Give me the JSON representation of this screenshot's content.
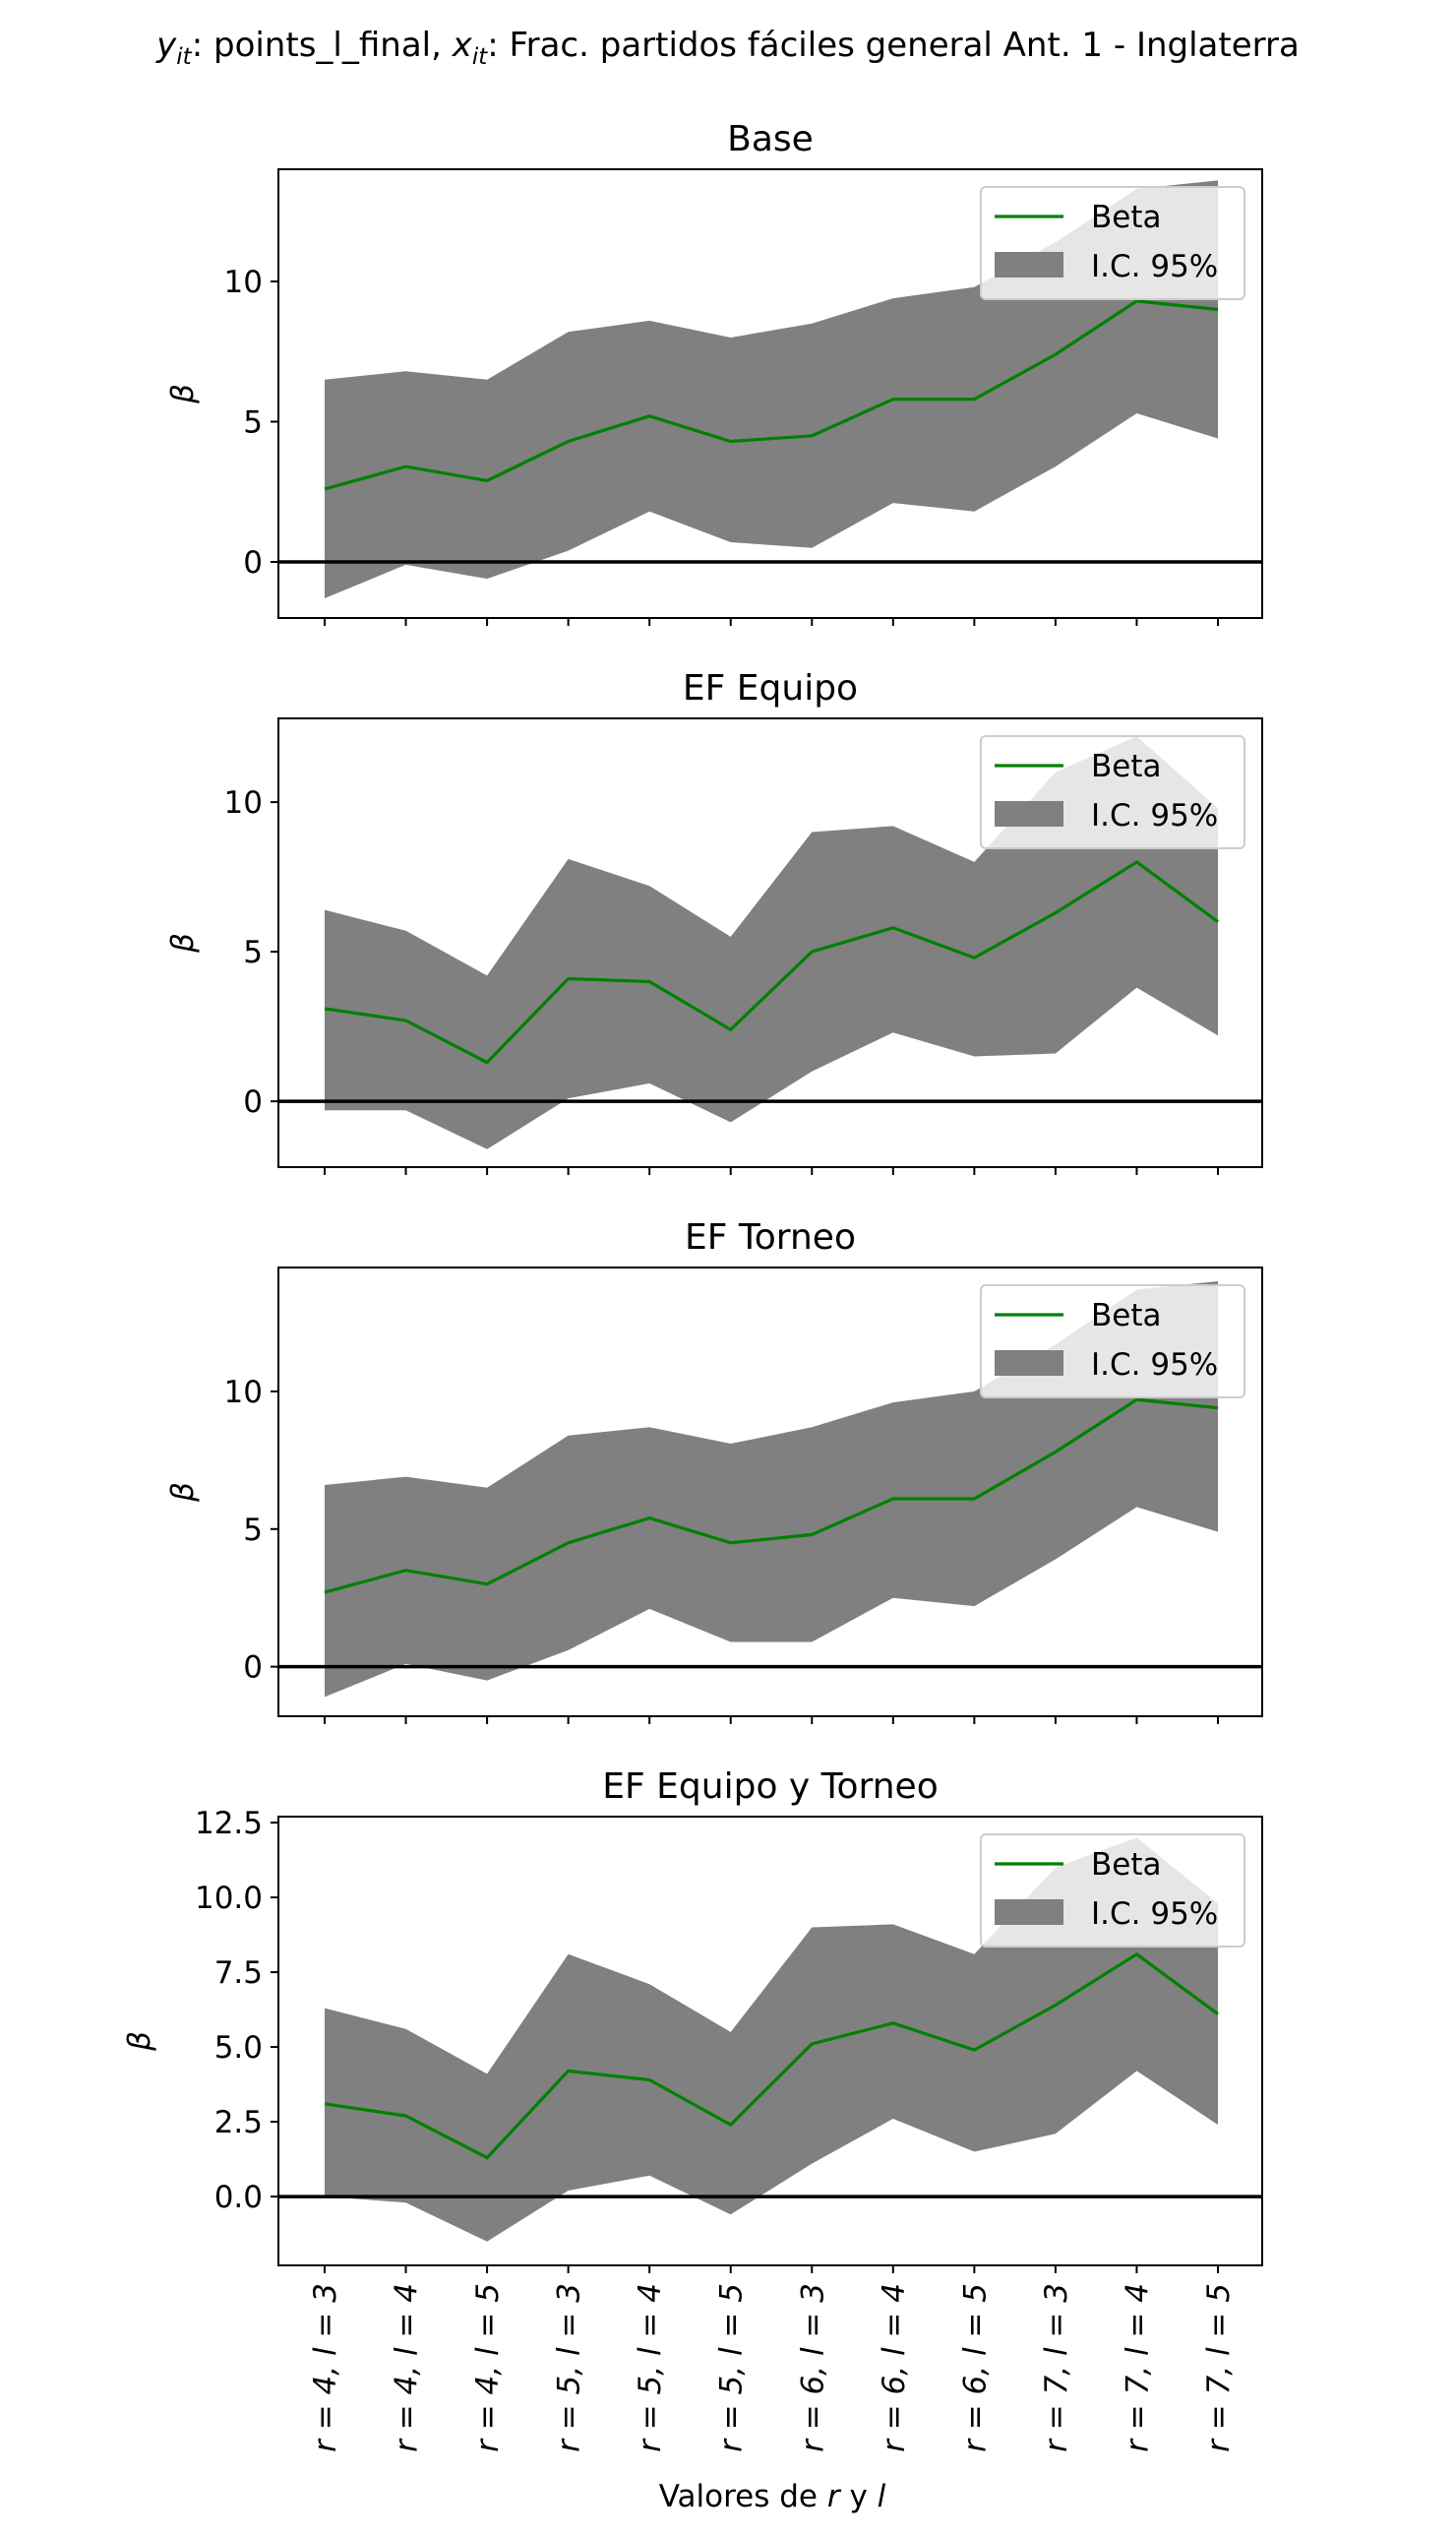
{
  "suptitle": {
    "y_var": "y",
    "y_sub": "it",
    "y_rest": ": points_l_final, ",
    "x_var": "x",
    "x_sub": "it",
    "x_rest": ": Frac. partidos fáciles general Ant. 1 - Inglaterra"
  },
  "xlabel": {
    "prefix": "Valores de ",
    "r": "r",
    "middle": " y ",
    "l": "l"
  },
  "ylabel": "β",
  "legend": {
    "line": "Beta",
    "band": "I.C. 95%"
  },
  "colors": {
    "line": "#008000",
    "band": "#808080",
    "zero": "#000000"
  },
  "x_categories": [
    "r = 4, l = 3",
    "r = 4, l = 4",
    "r = 4, l = 5",
    "r = 5, l = 3",
    "r = 5, l = 4",
    "r = 5, l = 5",
    "r = 6, l = 3",
    "r = 6, l = 4",
    "r = 6, l = 5",
    "r = 7, l = 3",
    "r = 7, l = 4",
    "r = 7, l = 5"
  ],
  "chart_data": [
    {
      "type": "line",
      "title": "Base",
      "ylabel": "β",
      "ylim": [
        -2.0,
        14.0
      ],
      "yticks": [
        0,
        5,
        10
      ],
      "ytick_labels": [
        "0",
        "5",
        "10"
      ],
      "series": [
        {
          "name": "Beta",
          "values": [
            2.6,
            3.4,
            2.9,
            4.3,
            5.2,
            4.3,
            4.5,
            5.8,
            5.8,
            7.4,
            9.3,
            9.0
          ]
        }
      ],
      "ci_lower": [
        -1.3,
        -0.1,
        -0.6,
        0.4,
        1.8,
        0.7,
        0.5,
        2.1,
        1.8,
        3.4,
        5.3,
        4.4
      ],
      "ci_upper": [
        6.5,
        6.8,
        6.5,
        8.2,
        8.6,
        8.0,
        8.5,
        9.4,
        9.8,
        11.4,
        13.3,
        13.6
      ]
    },
    {
      "type": "line",
      "title": "EF Equipo",
      "ylabel": "β",
      "ylim": [
        -2.2,
        12.8
      ],
      "yticks": [
        0,
        5,
        10
      ],
      "ytick_labels": [
        "0",
        "5",
        "10"
      ],
      "series": [
        {
          "name": "Beta",
          "values": [
            3.1,
            2.7,
            1.3,
            4.1,
            4.0,
            2.4,
            5.0,
            5.8,
            4.8,
            6.3,
            8.0,
            6.0
          ]
        }
      ],
      "ci_lower": [
        -0.3,
        -0.3,
        -1.6,
        0.1,
        0.6,
        -0.7,
        1.0,
        2.3,
        1.5,
        1.6,
        3.8,
        2.2
      ],
      "ci_upper": [
        6.4,
        5.7,
        4.2,
        8.1,
        7.2,
        5.5,
        9.0,
        9.2,
        8.0,
        11.0,
        12.2,
        9.8
      ]
    },
    {
      "type": "line",
      "title": "EF Torneo",
      "ylabel": "β",
      "ylim": [
        -1.8,
        14.5
      ],
      "yticks": [
        0,
        5,
        10
      ],
      "ytick_labels": [
        "0",
        "5",
        "10"
      ],
      "series": [
        {
          "name": "Beta",
          "values": [
            2.7,
            3.5,
            3.0,
            4.5,
            5.4,
            4.5,
            4.8,
            6.1,
            6.1,
            7.8,
            9.7,
            9.4
          ]
        }
      ],
      "ci_lower": [
        -1.1,
        0.1,
        -0.5,
        0.6,
        2.1,
        0.9,
        0.9,
        2.5,
        2.2,
        3.9,
        5.8,
        4.9
      ],
      "ci_upper": [
        6.6,
        6.9,
        6.5,
        8.4,
        8.7,
        8.1,
        8.7,
        9.6,
        10.0,
        11.7,
        13.7,
        14.0
      ]
    },
    {
      "type": "line",
      "title": "EF Equipo y Torneo",
      "ylabel": "β",
      "ylim": [
        -2.3,
        12.7
      ],
      "yticks": [
        0.0,
        2.5,
        5.0,
        7.5,
        10.0,
        12.5
      ],
      "ytick_labels": [
        "0.0",
        "2.5",
        "5.0",
        "7.5",
        "10.0",
        "12.5"
      ],
      "series": [
        {
          "name": "Beta",
          "values": [
            3.1,
            2.7,
            1.3,
            4.2,
            3.9,
            2.4,
            5.1,
            5.8,
            4.9,
            6.4,
            8.1,
            6.1
          ]
        }
      ],
      "ci_lower": [
        0.0,
        -0.2,
        -1.5,
        0.2,
        0.7,
        -0.6,
        1.1,
        2.6,
        1.5,
        2.1,
        4.2,
        2.4
      ],
      "ci_upper": [
        6.3,
        5.6,
        4.1,
        8.1,
        7.1,
        5.5,
        9.0,
        9.1,
        8.1,
        11.0,
        12.0,
        9.8
      ]
    }
  ]
}
